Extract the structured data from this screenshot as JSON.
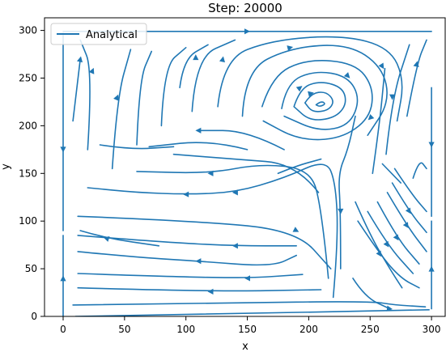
{
  "chart_data": {
    "type": "streamplot",
    "title": "Step: 20000",
    "xlabel": "x",
    "ylabel": "y",
    "xlim": [
      -15,
      310
    ],
    "ylim": [
      0,
      310
    ],
    "xticks": [
      0,
      50,
      100,
      150,
      200,
      250,
      300
    ],
    "yticks": [
      0,
      50,
      100,
      150,
      200,
      250,
      300
    ],
    "grid": false,
    "legend": {
      "placement": "top-left",
      "entries": [
        "Analytical"
      ]
    },
    "series": [
      {
        "name": "Analytical",
        "color": "#1f77b4"
      }
    ],
    "streamlines": [
      [
        [
          0,
          297
        ],
        [
          0,
          175
        ],
        [
          0,
          90
        ]
      ],
      [
        [
          0,
          0
        ],
        [
          0,
          40
        ],
        [
          0,
          85
        ]
      ],
      [
        [
          300,
          8
        ],
        [
          300,
          50
        ],
        [
          300,
          100
        ]
      ],
      [
        [
          300,
          105
        ],
        [
          300,
          180
        ],
        [
          300,
          240
        ]
      ],
      [
        [
          0,
          299
        ],
        [
          150,
          299
        ],
        [
          300,
          299
        ]
      ],
      [
        [
          10,
          0
        ],
        [
          150,
          3
        ],
        [
          298,
          7
        ]
      ],
      [
        [
          8,
          12
        ],
        [
          130,
          14
        ],
        [
          250,
          16
        ],
        [
          270,
          12
        ],
        [
          295,
          10
        ]
      ],
      [
        [
          206,
          222
        ],
        [
          210,
          226
        ],
        [
          214,
          223
        ],
        [
          209,
          220
        ],
        [
          206,
          222
        ]
      ],
      [
        [
          197,
          224
        ],
        [
          202,
          234
        ],
        [
          214,
          236
        ],
        [
          221,
          226
        ],
        [
          216,
          216
        ],
        [
          203,
          214
        ],
        [
          197,
          224
        ]
      ],
      [
        [
          188,
          220
        ],
        [
          193,
          240
        ],
        [
          210,
          247
        ],
        [
          228,
          240
        ],
        [
          231,
          222
        ],
        [
          221,
          208
        ],
        [
          201,
          205
        ],
        [
          188,
          220
        ]
      ],
      [
        [
          178,
          218
        ],
        [
          182,
          245
        ],
        [
          205,
          258
        ],
        [
          232,
          252
        ],
        [
          242,
          228
        ],
        [
          233,
          200
        ],
        [
          208,
          194
        ],
        [
          180,
          210
        ]
      ],
      [
        [
          162,
          220
        ],
        [
          170,
          252
        ],
        [
          198,
          270
        ],
        [
          238,
          266
        ],
        [
          253,
          240
        ],
        [
          250,
          208
        ],
        [
          226,
          186
        ],
        [
          192,
          185
        ],
        [
          163,
          205
        ]
      ],
      [
        [
          146,
          210
        ],
        [
          148,
          258
        ],
        [
          185,
          282
        ],
        [
          232,
          286
        ],
        [
          260,
          262
        ],
        [
          266,
          225
        ],
        [
          248,
          190
        ]
      ],
      [
        [
          126,
          220
        ],
        [
          130,
          270
        ],
        [
          170,
          290
        ],
        [
          228,
          295
        ],
        [
          266,
          282
        ],
        [
          278,
          248
        ],
        [
          272,
          205
        ]
      ],
      [
        [
          105,
          215
        ],
        [
          108,
          272
        ],
        [
          140,
          290
        ]
      ],
      [
        [
          95,
          240
        ],
        [
          98,
          270
        ],
        [
          118,
          285
        ]
      ],
      [
        [
          80,
          200
        ],
        [
          82,
          262
        ],
        [
          100,
          282
        ]
      ],
      [
        [
          60,
          180
        ],
        [
          62,
          248
        ],
        [
          72,
          278
        ]
      ],
      [
        [
          40,
          155
        ],
        [
          44,
          230
        ],
        [
          55,
          280
        ]
      ],
      [
        [
          20,
          175
        ],
        [
          24,
          258
        ],
        [
          14,
          290
        ]
      ],
      [
        [
          8,
          205
        ],
        [
          14,
          270
        ]
      ],
      [
        [
          280,
          210
        ],
        [
          288,
          265
        ],
        [
          296,
          290
        ]
      ],
      [
        [
          263,
          170
        ],
        [
          268,
          230
        ],
        [
          282,
          285
        ]
      ],
      [
        [
          252,
          150
        ],
        [
          258,
          205
        ],
        [
          262,
          260
        ]
      ],
      [
        [
          226,
          50
        ],
        [
          226,
          110
        ],
        [
          224,
          150
        ],
        [
          232,
          175
        ],
        [
          238,
          210
        ]
      ],
      [
        [
          220,
          20
        ],
        [
          224,
          80
        ],
        [
          222,
          140
        ],
        [
          214,
          165
        ],
        [
          180,
          145
        ],
        [
          140,
          130
        ],
        [
          100,
          128
        ],
        [
          60,
          130
        ],
        [
          20,
          135
        ]
      ],
      [
        [
          216,
          40
        ],
        [
          210,
          120
        ],
        [
          200,
          155
        ],
        [
          160,
          160
        ],
        [
          120,
          150
        ],
        [
          60,
          152
        ]
      ],
      [
        [
          208,
          130
        ],
        [
          190,
          160
        ],
        [
          140,
          165
        ],
        [
          90,
          170
        ]
      ],
      [
        [
          150,
          175
        ],
        [
          120,
          185
        ],
        [
          70,
          178
        ]
      ],
      [
        [
          180,
          175
        ],
        [
          150,
          195
        ],
        [
          110,
          195
        ]
      ],
      [
        [
          12,
          105
        ],
        [
          110,
          100
        ],
        [
          190,
          90
        ],
        [
          218,
          50
        ]
      ],
      [
        [
          12,
          85
        ],
        [
          80,
          78
        ],
        [
          140,
          74
        ],
        [
          190,
          74
        ]
      ],
      [
        [
          12,
          68
        ],
        [
          60,
          62
        ],
        [
          110,
          58
        ],
        [
          170,
          52
        ],
        [
          190,
          64
        ]
      ],
      [
        [
          12,
          45
        ],
        [
          80,
          42
        ],
        [
          150,
          40
        ],
        [
          195,
          44
        ]
      ],
      [
        [
          12,
          30
        ],
        [
          120,
          26
        ],
        [
          210,
          28
        ]
      ],
      [
        [
          14,
          90
        ],
        [
          35,
          82
        ],
        [
          78,
          74
        ]
      ],
      [
        [
          30,
          180
        ],
        [
          55,
          175
        ],
        [
          90,
          178
        ]
      ],
      [
        [
          175,
          150
        ],
        [
          190,
          158
        ],
        [
          210,
          165
        ]
      ],
      [
        [
          238,
          120
        ],
        [
          250,
          85
        ],
        [
          266,
          50
        ],
        [
          276,
          30
        ]
      ],
      [
        [
          240,
          100
        ],
        [
          258,
          65
        ],
        [
          275,
          40
        ],
        [
          290,
          30
        ]
      ],
      [
        [
          248,
          110
        ],
        [
          264,
          75
        ],
        [
          285,
          45
        ]
      ],
      [
        [
          256,
          120
        ],
        [
          272,
          82
        ],
        [
          290,
          55
        ]
      ],
      [
        [
          264,
          130
        ],
        [
          280,
          95
        ],
        [
          296,
          68
        ]
      ],
      [
        [
          268,
          140
        ],
        [
          282,
          110
        ],
        [
          296,
          88
        ]
      ],
      [
        [
          270,
          155
        ],
        [
          284,
          128
        ],
        [
          296,
          110
        ]
      ],
      [
        [
          260,
          160
        ],
        [
          275,
          140
        ]
      ],
      [
        [
          285,
          145
        ],
        [
          290,
          165
        ],
        [
          296,
          155
        ]
      ],
      [
        [
          236,
          40
        ],
        [
          246,
          20
        ],
        [
          266,
          8
        ]
      ]
    ],
    "arrows": [
      [
        [
          0,
          175
        ],
        [
          0,
          165
        ]
      ],
      [
        [
          0,
          40
        ],
        [
          0,
          50
        ]
      ],
      [
        [
          300,
          50
        ],
        [
          300,
          60
        ]
      ],
      [
        [
          300,
          180
        ],
        [
          300,
          170
        ]
      ],
      [
        [
          150,
          299
        ],
        [
          160,
          299
        ]
      ],
      [
        [
          202,
          234
        ],
        [
          208,
          236
        ]
      ],
      [
        [
          193,
          240
        ],
        [
          196,
          243
        ]
      ],
      [
        [
          232,
          252
        ],
        [
          235,
          248
        ]
      ],
      [
        [
          250,
          208
        ],
        [
          246,
          203
        ]
      ],
      [
        [
          185,
          282
        ],
        [
          195,
          285
        ]
      ],
      [
        [
          260,
          262
        ],
        [
          262,
          258
        ]
      ],
      [
        [
          108,
          272
        ],
        [
          108,
          278
        ]
      ],
      [
        [
          130,
          270
        ],
        [
          131,
          276
        ]
      ],
      [
        [
          44,
          230
        ],
        [
          46,
          236
        ]
      ],
      [
        [
          24,
          258
        ],
        [
          26,
          264
        ]
      ],
      [
        [
          14,
          270
        ],
        [
          15,
          276
        ]
      ],
      [
        [
          288,
          265
        ],
        [
          289,
          271
        ]
      ],
      [
        [
          268,
          230
        ],
        [
          268,
          224
        ]
      ],
      [
        [
          226,
          110
        ],
        [
          226,
          104
        ]
      ],
      [
        [
          140,
          130
        ],
        [
          134,
          130
        ]
      ],
      [
        [
          100,
          128
        ],
        [
          94,
          128
        ]
      ],
      [
        [
          120,
          150
        ],
        [
          114,
          150
        ]
      ],
      [
        [
          110,
          195
        ],
        [
          104,
          195
        ]
      ],
      [
        [
          190,
          90
        ],
        [
          196,
          86
        ]
      ],
      [
        [
          140,
          74
        ],
        [
          134,
          74
        ]
      ],
      [
        [
          110,
          58
        ],
        [
          104,
          58
        ]
      ],
      [
        [
          150,
          40
        ],
        [
          144,
          40
        ]
      ],
      [
        [
          120,
          26
        ],
        [
          114,
          26
        ]
      ],
      [
        [
          35,
          82
        ],
        [
          30,
          84
        ]
      ],
      [
        [
          258,
          65
        ],
        [
          261,
          59
        ]
      ],
      [
        [
          264,
          75
        ],
        [
          267,
          69
        ]
      ],
      [
        [
          272,
          82
        ],
        [
          275,
          76
        ]
      ],
      [
        [
          280,
          95
        ],
        [
          283,
          89
        ]
      ],
      [
        [
          282,
          110
        ],
        [
          285,
          104
        ]
      ],
      [
        [
          266,
          8
        ],
        [
          272,
          7
        ]
      ]
    ]
  }
}
